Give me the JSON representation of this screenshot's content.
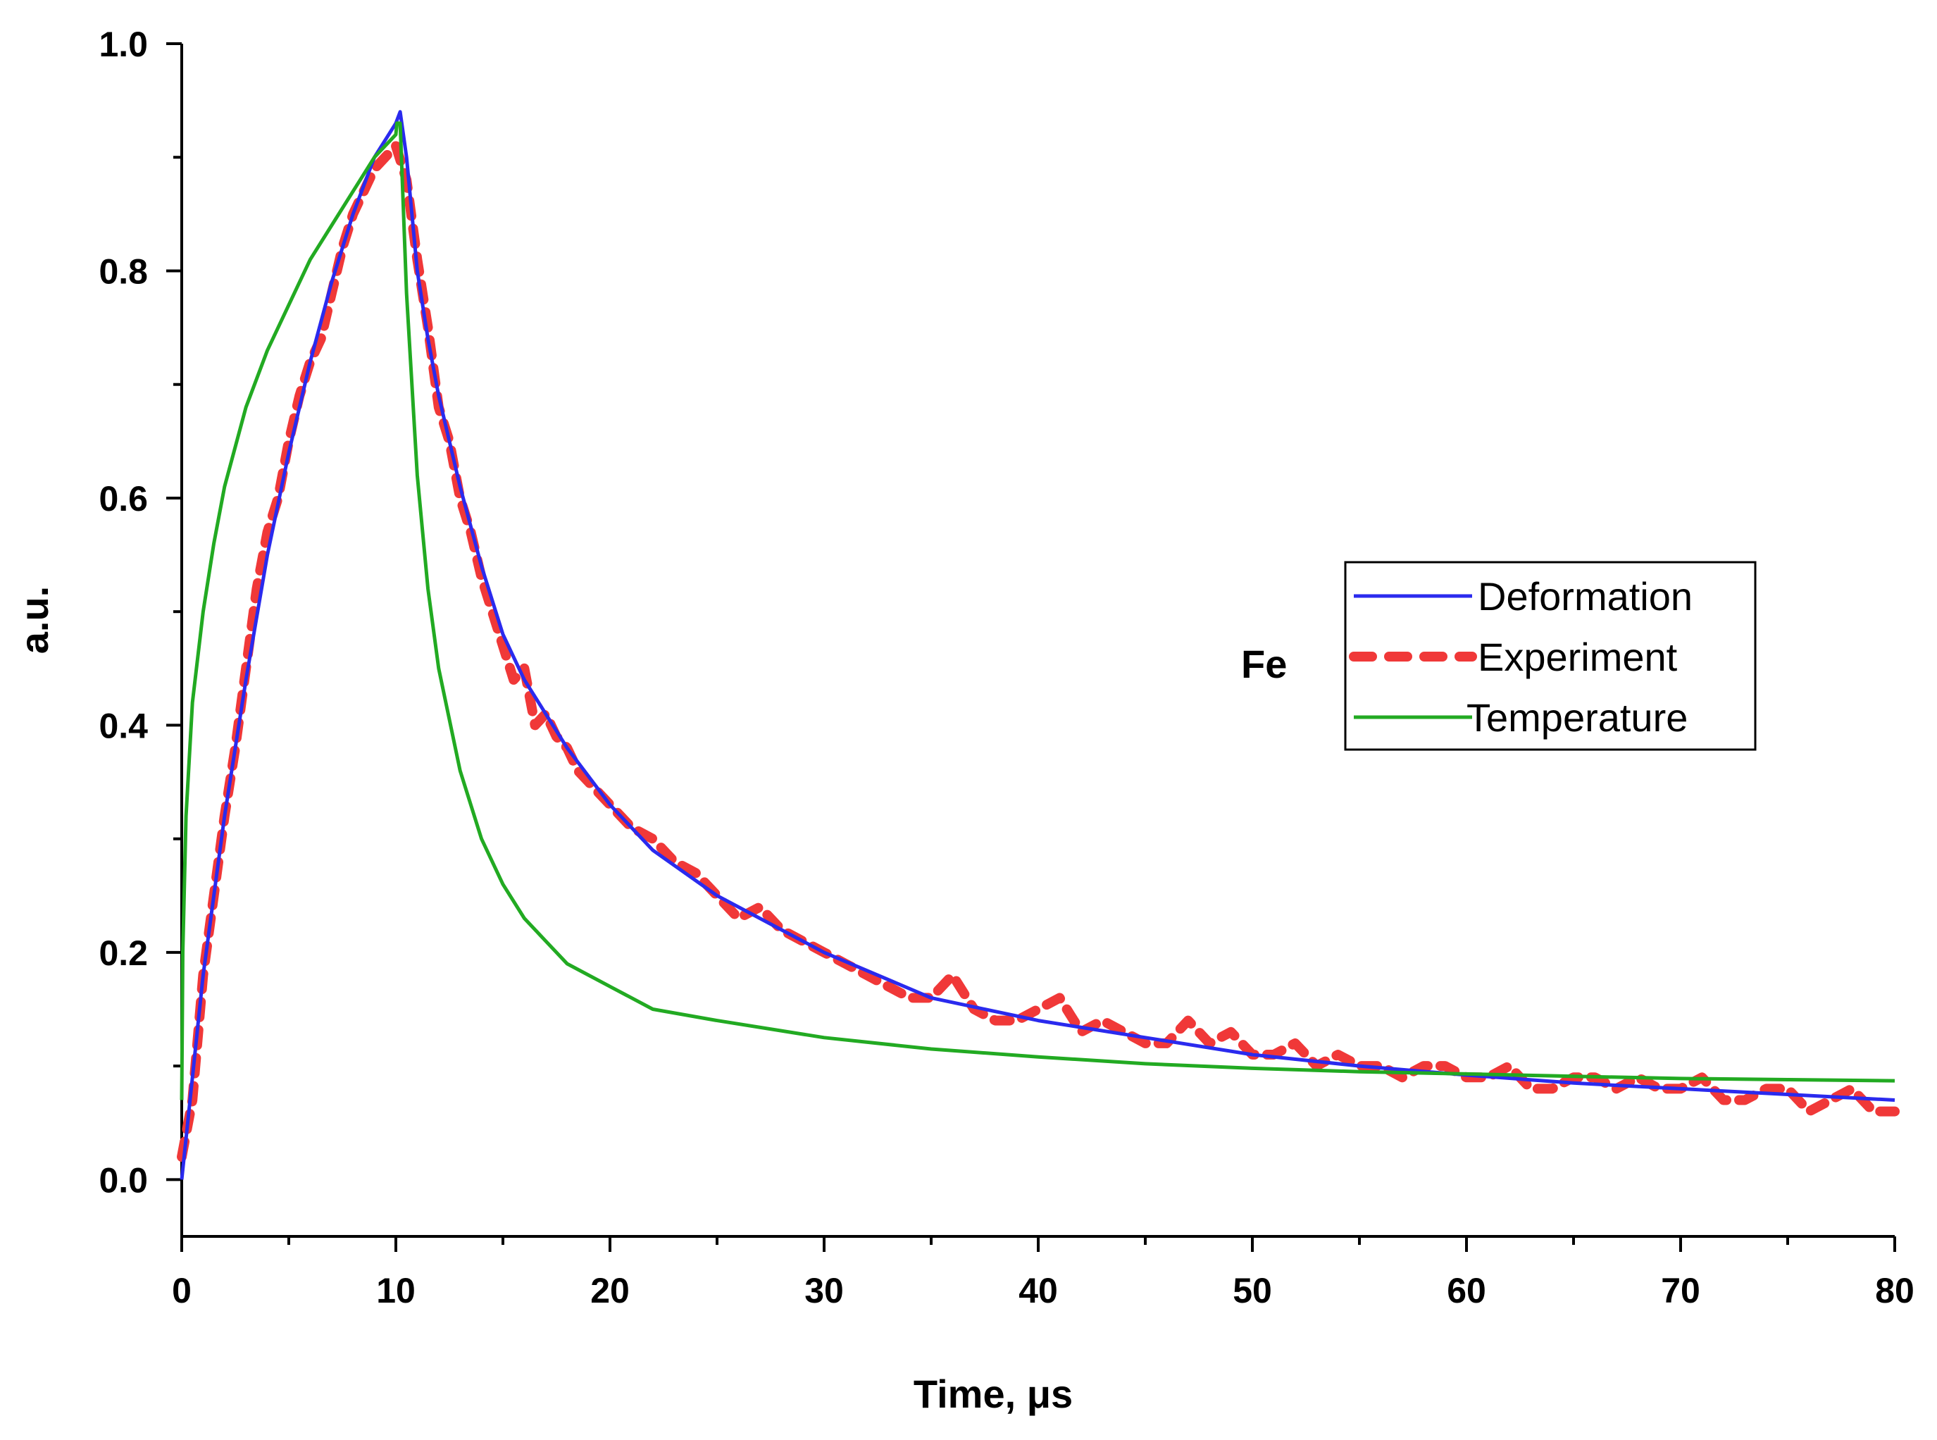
{
  "chart_data": {
    "type": "line",
    "title": "",
    "xlabel": "Time, μs",
    "ylabel": "a.u.",
    "xlim": [
      0,
      80
    ],
    "ylim": [
      -0.05,
      1.0
    ],
    "x_ticks": [
      0,
      10,
      20,
      30,
      40,
      50,
      60,
      70,
      80
    ],
    "x_tick_labels": [
      "0",
      "10",
      "20",
      "30",
      "40",
      "50",
      "60",
      "70",
      "80"
    ],
    "y_ticks": [
      0.0,
      0.2,
      0.4,
      0.6,
      0.8,
      1.0
    ],
    "y_tick_labels": [
      "0.0",
      "0.2",
      "0.4",
      "0.6",
      "0.8",
      "1.0"
    ],
    "grid": false,
    "legend_position": "right",
    "annotation": "Fe",
    "series": [
      {
        "name": "Deformation",
        "color": "#2a2aee",
        "style": "solid",
        "x": [
          0,
          0.5,
          1,
          2,
          3,
          4,
          5,
          6,
          7,
          8,
          9,
          10,
          10.2,
          10.5,
          11,
          11.5,
          12,
          13,
          14,
          15,
          16,
          17,
          18,
          20,
          22,
          25,
          30,
          35,
          40,
          45,
          50,
          55,
          60,
          65,
          70,
          75,
          80
        ],
        "y": [
          0.0,
          0.09,
          0.18,
          0.32,
          0.44,
          0.55,
          0.64,
          0.72,
          0.79,
          0.85,
          0.9,
          0.93,
          0.94,
          0.9,
          0.8,
          0.74,
          0.69,
          0.61,
          0.54,
          0.48,
          0.44,
          0.41,
          0.38,
          0.33,
          0.29,
          0.25,
          0.2,
          0.16,
          0.14,
          0.125,
          0.11,
          0.1,
          0.092,
          0.085,
          0.08,
          0.075,
          0.07
        ]
      },
      {
        "name": "Experiment",
        "color": "#f03838",
        "style": "dashed",
        "x": [
          0,
          0.5,
          1,
          1.5,
          2,
          2.5,
          3,
          3.5,
          4,
          4.5,
          5,
          5.5,
          6,
          6.5,
          7,
          7.5,
          8,
          8.5,
          9,
          9.5,
          10,
          10.5,
          11,
          11.5,
          12,
          12.5,
          13,
          13.5,
          14,
          14.5,
          15,
          15.5,
          16,
          16.5,
          17,
          17.5,
          18,
          18.5,
          19,
          19.5,
          20,
          21,
          22,
          23,
          24,
          25,
          26,
          27,
          28,
          29,
          30,
          31,
          32,
          33,
          34,
          35,
          36,
          37,
          38,
          39,
          40,
          41,
          42,
          43,
          44,
          45,
          46,
          47,
          48,
          49,
          50,
          51,
          52,
          53,
          54,
          55,
          56,
          57,
          58,
          59,
          60,
          61,
          62,
          63,
          64,
          65,
          66,
          67,
          68,
          69,
          70,
          71,
          72,
          73,
          74,
          75,
          76,
          77,
          78,
          79,
          80
        ],
        "y": [
          0.02,
          0.07,
          0.18,
          0.25,
          0.32,
          0.38,
          0.45,
          0.52,
          0.57,
          0.6,
          0.65,
          0.69,
          0.72,
          0.74,
          0.78,
          0.82,
          0.85,
          0.87,
          0.89,
          0.9,
          0.91,
          0.88,
          0.81,
          0.75,
          0.68,
          0.65,
          0.6,
          0.57,
          0.53,
          0.5,
          0.47,
          0.44,
          0.45,
          0.4,
          0.41,
          0.39,
          0.38,
          0.36,
          0.35,
          0.34,
          0.33,
          0.31,
          0.3,
          0.28,
          0.27,
          0.25,
          0.23,
          0.24,
          0.22,
          0.21,
          0.2,
          0.19,
          0.18,
          0.17,
          0.16,
          0.16,
          0.18,
          0.15,
          0.14,
          0.14,
          0.15,
          0.16,
          0.13,
          0.14,
          0.13,
          0.12,
          0.12,
          0.14,
          0.12,
          0.13,
          0.11,
          0.11,
          0.12,
          0.1,
          0.11,
          0.1,
          0.1,
          0.09,
          0.1,
          0.1,
          0.09,
          0.09,
          0.1,
          0.08,
          0.08,
          0.09,
          0.09,
          0.08,
          0.09,
          0.08,
          0.08,
          0.09,
          0.07,
          0.07,
          0.08,
          0.08,
          0.06,
          0.07,
          0.08,
          0.06,
          0.06
        ]
      },
      {
        "name": "Temperature",
        "color": "#22aa22",
        "style": "solid",
        "x": [
          0,
          0.05,
          0.2,
          0.5,
          1,
          1.5,
          2,
          3,
          4,
          5,
          6,
          7,
          8,
          9,
          10,
          10.05,
          10.2,
          10.5,
          11,
          11.5,
          12,
          13,
          14,
          15,
          16,
          17,
          18,
          20,
          22,
          25,
          30,
          35,
          40,
          45,
          50,
          55,
          60,
          65,
          70,
          75,
          80
        ],
        "y": [
          0.07,
          0.2,
          0.32,
          0.42,
          0.5,
          0.56,
          0.61,
          0.68,
          0.73,
          0.77,
          0.81,
          0.84,
          0.87,
          0.9,
          0.92,
          0.93,
          0.93,
          0.78,
          0.62,
          0.52,
          0.45,
          0.36,
          0.3,
          0.26,
          0.23,
          0.21,
          0.19,
          0.17,
          0.15,
          0.14,
          0.125,
          0.115,
          0.108,
          0.102,
          0.098,
          0.095,
          0.093,
          0.091,
          0.089,
          0.088,
          0.087
        ]
      }
    ]
  }
}
